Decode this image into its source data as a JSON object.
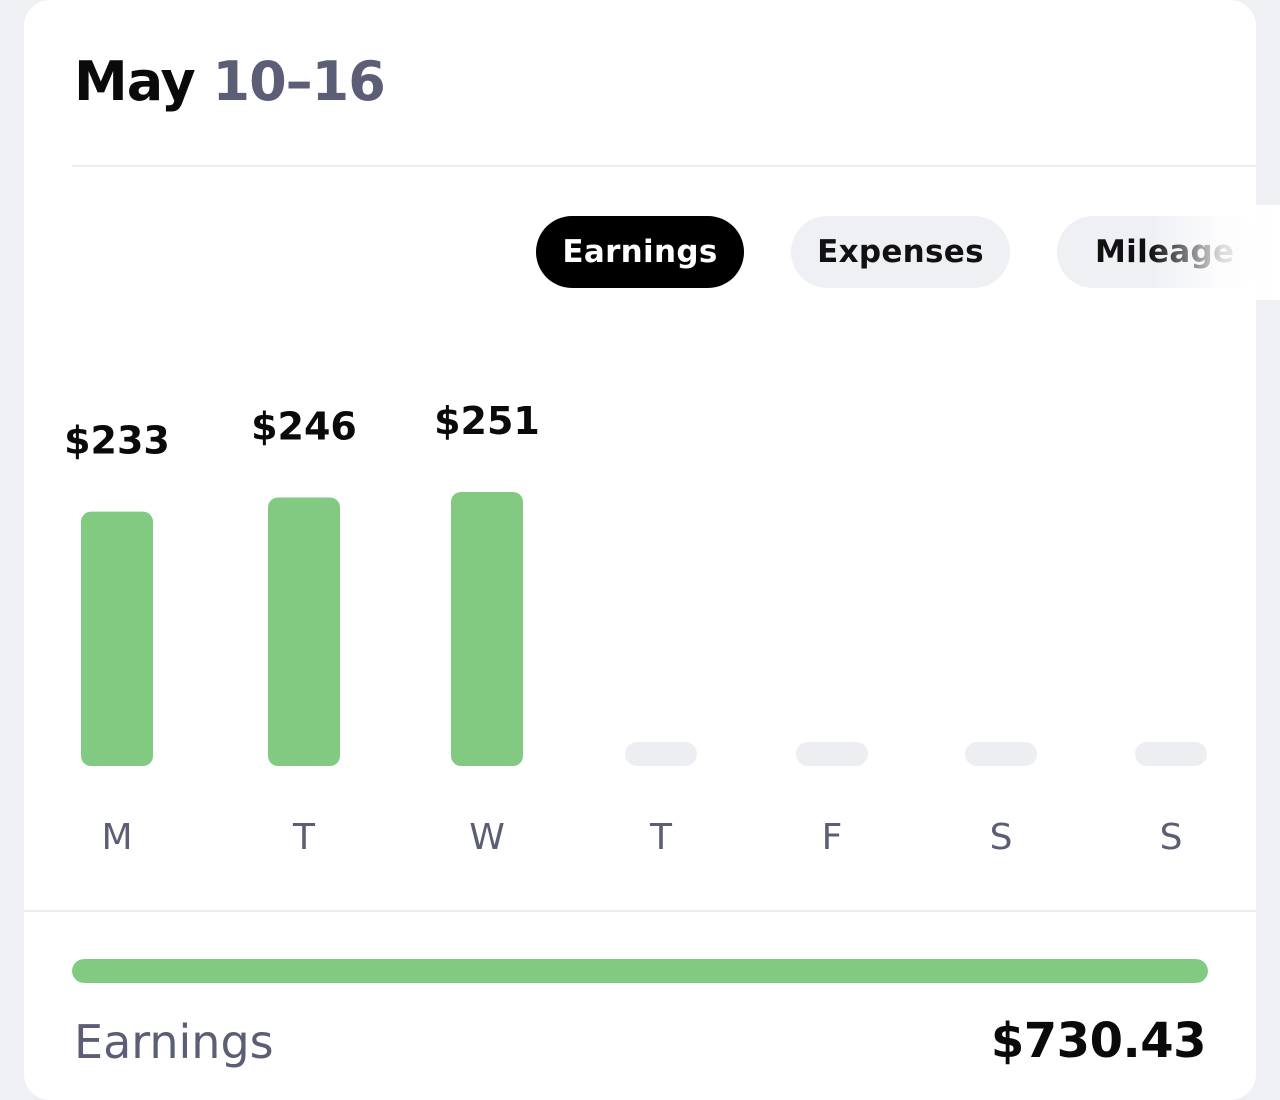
{
  "header": {
    "month": "May",
    "range": "10–16"
  },
  "tabs": [
    {
      "label": "Earnings",
      "active": true
    },
    {
      "label": "Expenses",
      "active": false
    },
    {
      "label": "Mileage",
      "active": false
    }
  ],
  "chart_data": {
    "type": "bar",
    "categories": [
      "M",
      "T",
      "W",
      "T",
      "F",
      "S",
      "S"
    ],
    "values": [
      233,
      246,
      251,
      null,
      null,
      null,
      null
    ],
    "value_labels": [
      "$233",
      "$246",
      "$251",
      "",
      "",
      "",
      ""
    ],
    "series": [
      {
        "values": [
          233,
          246,
          251,
          null,
          null,
          null,
          null
        ]
      }
    ],
    "title": "",
    "xlabel": "",
    "ylabel": "",
    "grid": false,
    "colors": {
      "bar": "#82ca82",
      "empty_bar": "#eceef2",
      "value_label": "#0a0a0a",
      "day_label": "#5b5e74"
    }
  },
  "summary": {
    "label": "Earnings",
    "value": "$730.43",
    "progress_fraction": 1.0,
    "color": "#82ca82"
  }
}
